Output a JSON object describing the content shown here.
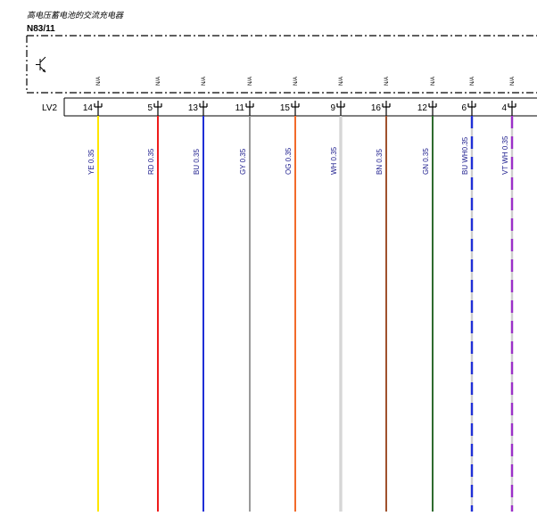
{
  "component": {
    "title": "高电压蓄电池的交流充电器",
    "code": "N83/11",
    "symbol": "transistor-icon"
  },
  "connector": {
    "name": "LV2"
  },
  "pins": [
    {
      "pin": "14",
      "na": "N/A",
      "label": "YE  0.35",
      "color": "#ffe600",
      "stripe": ""
    },
    {
      "pin": "5",
      "na": "N/A",
      "label": "RD  0.35",
      "color": "#ee1c1c",
      "stripe": ""
    },
    {
      "pin": "13",
      "na": "N/A",
      "label": "BU  0.35",
      "color": "#1f2fd6",
      "stripe": ""
    },
    {
      "pin": "11",
      "na": "N/A",
      "label": "GY  0.35",
      "color": "#9a9a9a",
      "stripe": ""
    },
    {
      "pin": "15",
      "na": "N/A",
      "label": "OG  0.35",
      "color": "#f26a2a",
      "stripe": ""
    },
    {
      "pin": "9",
      "na": "N/A",
      "label": "WH  0.35",
      "color": "#d8d8d8",
      "stripe": ""
    },
    {
      "pin": "16",
      "na": "N/A",
      "label": "BN  0.35",
      "color": "#a0522d",
      "stripe": ""
    },
    {
      "pin": "12",
      "na": "N/A",
      "label": "GN  0.35",
      "color": "#2e6b2e",
      "stripe": ""
    },
    {
      "pin": "6",
      "na": "N/A",
      "label": "BU WH0.35",
      "color": "#1f2fd6",
      "stripe": "#ffffff"
    },
    {
      "pin": "4",
      "na": "N/A",
      "label": "VT WH 0.35",
      "color": "#9b30c8",
      "stripe": "#ffffff"
    }
  ]
}
